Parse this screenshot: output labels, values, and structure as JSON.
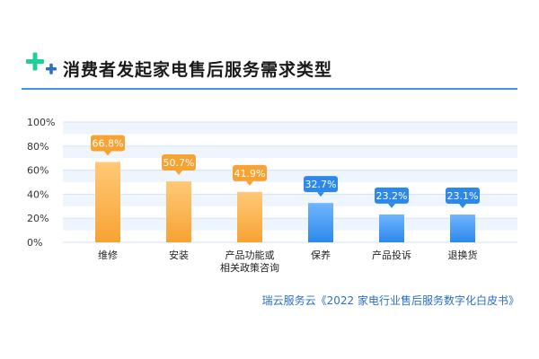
{
  "header": {
    "title": "消费者发起家电售后服务需求类型"
  },
  "source_note": "瑞云服务云《2022 家电行业售后服务数字化白皮书》",
  "colors": {
    "orange": "#f7a334",
    "blue": "#2e88ea",
    "band": "#eef5fd",
    "accent_green": "#1fcf9a",
    "rule": "#3f93e8"
  },
  "chart_data": {
    "type": "bar",
    "title": "消费者发起家电售后服务需求类型",
    "categories": [
      "维修",
      "安装",
      "产品功能或\n相关政策咨询",
      "保养",
      "产品投诉",
      "退换货"
    ],
    "values": [
      66.8,
      50.7,
      41.9,
      32.7,
      23.2,
      23.1
    ],
    "value_labels": [
      "66.8%",
      "50.7%",
      "41.9%",
      "32.7%",
      "23.2%",
      "23.1%"
    ],
    "bar_colors": [
      "orange",
      "orange",
      "orange",
      "blue",
      "blue",
      "blue"
    ],
    "yticks": [
      "0%",
      "20%",
      "40%",
      "60%",
      "80%",
      "100%"
    ],
    "ylim": [
      0,
      100
    ],
    "grid": true,
    "legend": "none"
  }
}
